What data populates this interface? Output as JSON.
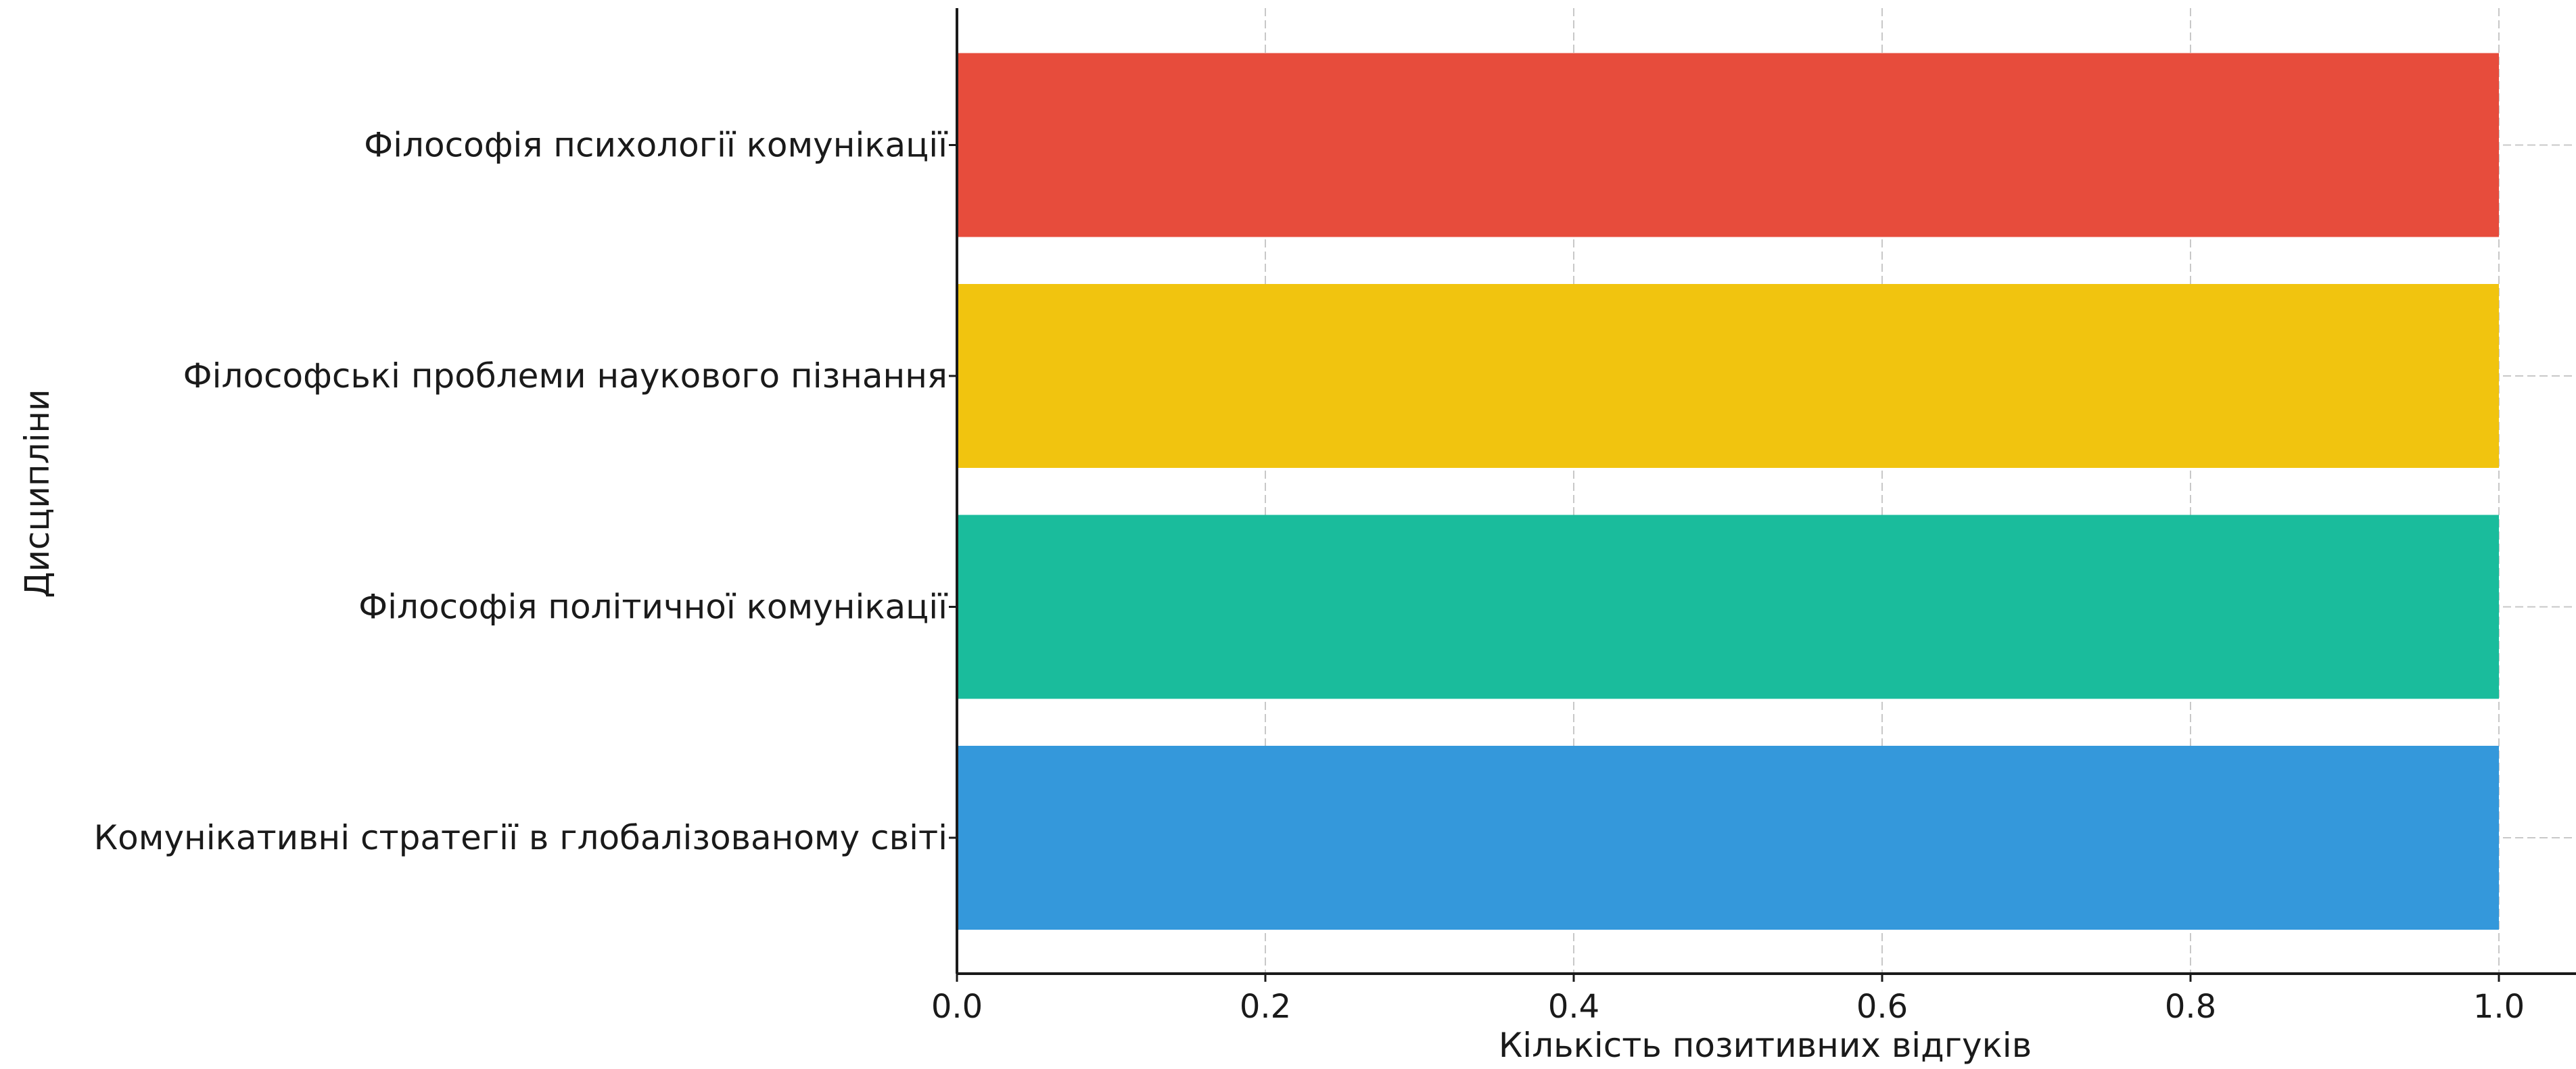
{
  "chart_data": {
    "type": "bar",
    "orientation": "horizontal",
    "categories": [
      "Комунікативні стратегії в глобалізованому світі",
      "Філософія політичної комунікації",
      "Філософські проблеми наукового пізнання",
      "Філософія психології комунікації"
    ],
    "values": [
      1,
      1,
      1,
      1
    ],
    "colors": [
      "#3498db",
      "#1abc9c",
      "#f1c40f",
      "#e74c3c"
    ],
    "xlabel": "Кількість позитивних відгуків",
    "ylabel": "Дисципліни",
    "xlim": [
      0,
      1.05
    ],
    "xticks": [
      "0.0",
      "0.2",
      "0.4",
      "0.6",
      "0.8",
      "1.0"
    ],
    "grid": true
  }
}
